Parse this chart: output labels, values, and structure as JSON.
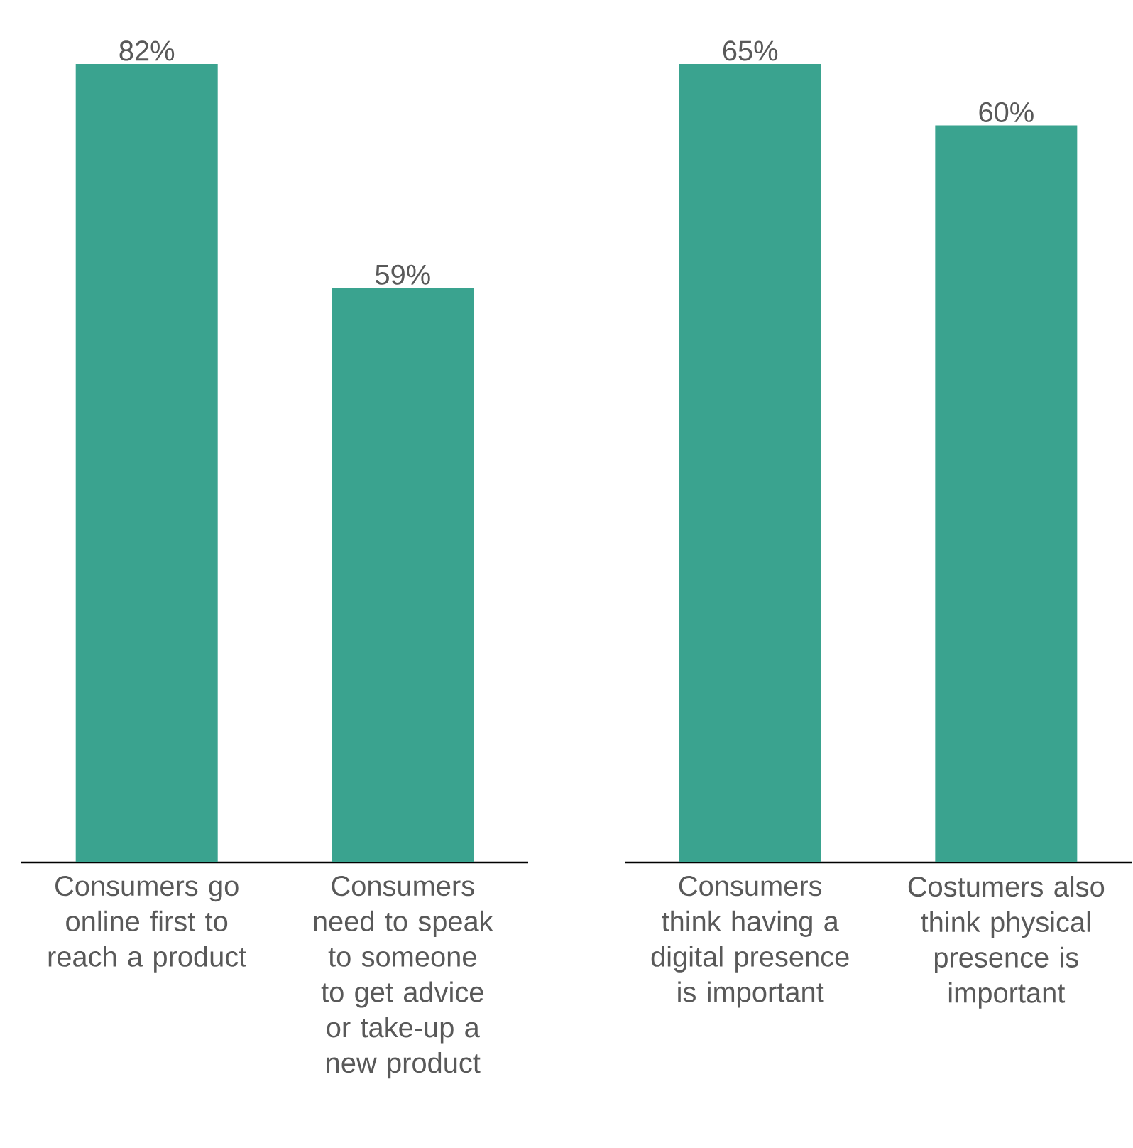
{
  "chart_data": [
    {
      "type": "bar",
      "categories": [
        "Consumers go online first to reach a product",
        "Consumers need to speak to someone to get advice or take-up a new product"
      ],
      "values": [
        82,
        59
      ],
      "value_labels": [
        "82%",
        "59%"
      ],
      "color": "#3aa38f"
    },
    {
      "type": "bar",
      "categories": [
        "Consumers think having a digital presence is important",
        "Costumers also think physical presence is important"
      ],
      "values": [
        65,
        60
      ],
      "value_labels": [
        "65%",
        "60%"
      ],
      "color": "#3aa38f"
    }
  ]
}
